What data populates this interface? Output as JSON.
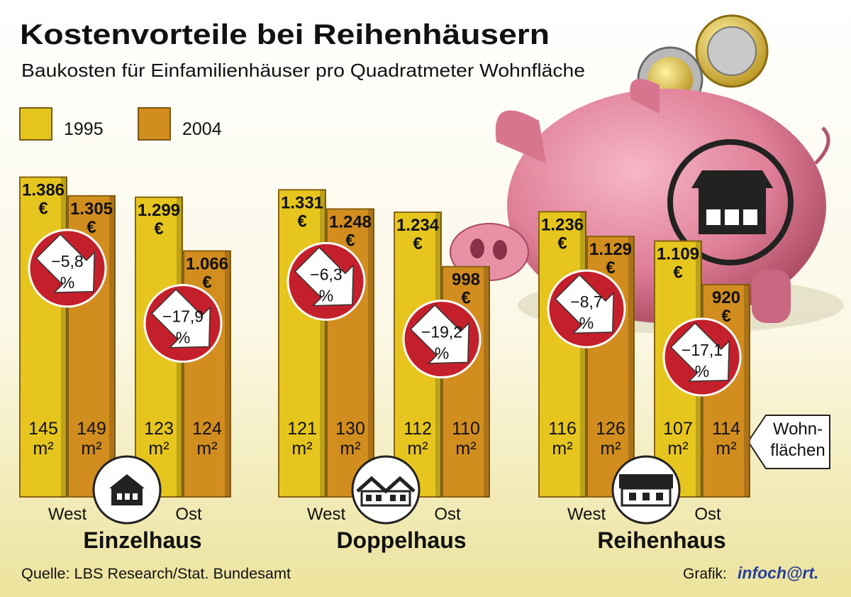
{
  "chart_data": {
    "type": "bar",
    "title": "Kostenvorteile bei Reihenhäusern",
    "subtitle": "Baukosten für Einfamilienhäuser pro Quadratmeter Wohnfläche",
    "groups": [
      "Einzelhaus",
      "Doppelhaus",
      "Reihenhaus"
    ],
    "categories": [
      "West",
      "Ost",
      "West",
      "Ost",
      "West",
      "Ost"
    ],
    "value_unit": "€",
    "series": [
      {
        "name": "1995",
        "color": "#e6c61e",
        "values": [
          1386,
          1299,
          1331,
          1234,
          1236,
          1109
        ],
        "value_labels": [
          "1.386",
          "1.299",
          "1.331",
          "1.234",
          "1.236",
          "1.109"
        ],
        "areas": [
          145,
          123,
          121,
          112,
          116,
          107
        ]
      },
      {
        "name": "2004",
        "color": "#d28d1f",
        "values": [
          1305,
          1066,
          1248,
          998,
          1129,
          920
        ],
        "value_labels": [
          "1.305",
          "1.066",
          "1.248",
          "998",
          "1.129",
          "920"
        ],
        "areas": [
          149,
          124,
          130,
          110,
          126,
          114
        ]
      }
    ],
    "area_unit": "m²",
    "changes": {
      "values": [
        -5.8,
        -17.9,
        -6.3,
        -19.2,
        -8.7,
        -17.1
      ],
      "value_labels": [
        "−5,8",
        "−17,9",
        "−6,3",
        "−19,2",
        "−8,7",
        "−17,1"
      ]
    },
    "change_unit": "%",
    "annotation": [
      "Wohn-",
      "flächen"
    ],
    "source": "Quelle: LBS Research/Stat. Bundesamt",
    "credit": "Grafik:",
    "credit_brand": "infoch@rt."
  }
}
